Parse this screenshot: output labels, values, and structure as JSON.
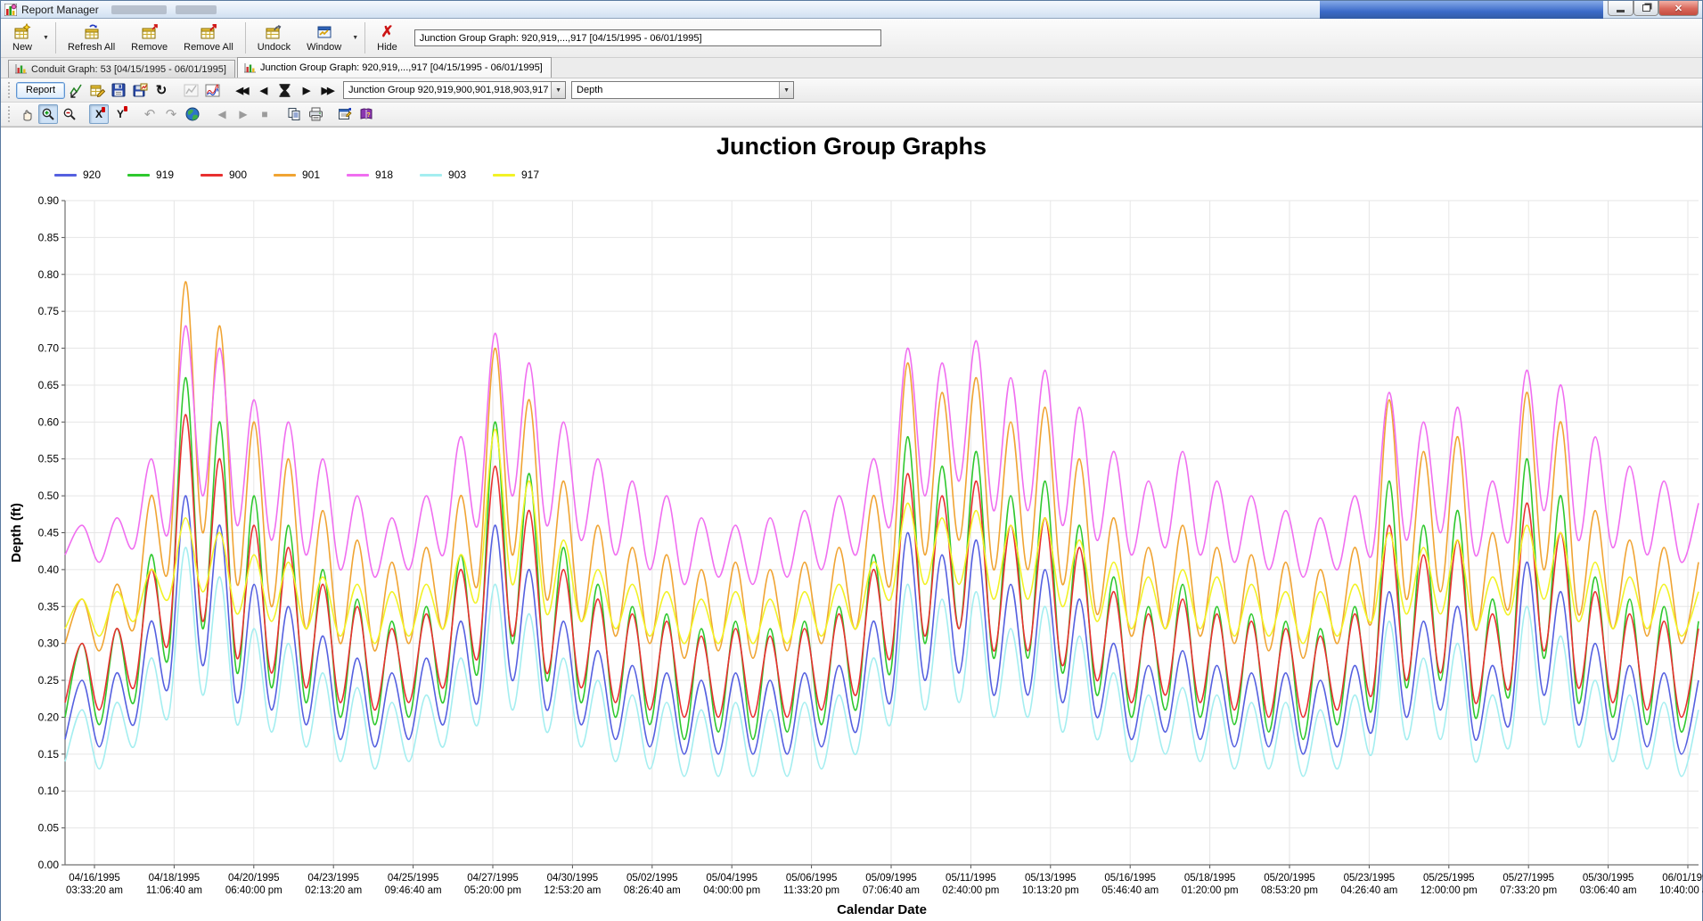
{
  "window": {
    "title": "Report Manager"
  },
  "icons": {
    "caret": "▼",
    "hide_x": "✗",
    "refresh_arrow": "↻",
    "nav_first": "◀◀",
    "nav_prev": "◀",
    "nav_next": "▶",
    "nav_last": "▶▶",
    "undo": "↶",
    "redo": "↷",
    "back": "◀",
    "forward": "▶",
    "stop": "■",
    "x_axis": "X",
    "y_axis": "Y",
    "close": "✕",
    "help_q": "?"
  },
  "toolbar": {
    "buttons": [
      {
        "label": "New"
      },
      {
        "label": "Refresh All"
      },
      {
        "label": "Remove"
      },
      {
        "label": "Remove All"
      },
      {
        "label": "Undock"
      },
      {
        "label": "Window"
      },
      {
        "label": "Hide"
      }
    ],
    "report_field_value": "Junction Group Graph: 920,919,...,917 [04/15/1995 - 06/01/1995]"
  },
  "tabs": [
    {
      "label": "Conduit Graph: 53 [04/15/1995 - 06/01/1995]",
      "active": false
    },
    {
      "label": "Junction Group Graph: 920,919,...,917 [04/15/1995 - 06/01/1995]",
      "active": true
    }
  ],
  "graph_toolbar": {
    "report_button": "Report",
    "group_combo_value": "Junction Group 920,919,900,901,918,903,917",
    "param_combo_value": "Depth"
  },
  "chart_data": {
    "type": "line",
    "title": "Junction Group Graphs",
    "xlabel": "Calendar Date",
    "ylabel": "Depth (ft)",
    "ylim": [
      0,
      0.9
    ],
    "ytick_step": 0.05,
    "grid": true,
    "legend_position": "top-left",
    "x_ticks": [
      {
        "date": "04/16/1995",
        "time": "03:33:20 am"
      },
      {
        "date": "04/18/1995",
        "time": "11:06:40 am"
      },
      {
        "date": "04/20/1995",
        "time": "06:40:00 pm"
      },
      {
        "date": "04/23/1995",
        "time": "02:13:20 am"
      },
      {
        "date": "04/25/1995",
        "time": "09:46:40 am"
      },
      {
        "date": "04/27/1995",
        "time": "05:20:00 pm"
      },
      {
        "date": "04/30/1995",
        "time": "12:53:20 am"
      },
      {
        "date": "05/02/1995",
        "time": "08:26:40 am"
      },
      {
        "date": "05/04/1995",
        "time": "04:00:00 pm"
      },
      {
        "date": "05/06/1995",
        "time": "11:33:20 pm"
      },
      {
        "date": "05/09/1995",
        "time": "07:06:40 am"
      },
      {
        "date": "05/11/1995",
        "time": "02:40:00 pm"
      },
      {
        "date": "05/13/1995",
        "time": "10:13:20 pm"
      },
      {
        "date": "05/16/1995",
        "time": "05:46:40 am"
      },
      {
        "date": "05/18/1995",
        "time": "01:20:00 pm"
      },
      {
        "date": "05/20/1995",
        "time": "08:53:20 pm"
      },
      {
        "date": "05/23/1995",
        "time": "04:26:40 am"
      },
      {
        "date": "05/25/1995",
        "time": "12:00:00 pm"
      },
      {
        "date": "05/27/1995",
        "time": "07:33:20 pm"
      },
      {
        "date": "05/30/1995",
        "time": "03:06:40 am"
      },
      {
        "date": "06/01/1995",
        "time": "10:40:00 am"
      }
    ],
    "x_range_days": 48,
    "samples_per_day": 2,
    "series": [
      {
        "name": "920",
        "color": "#5560e0",
        "values": [
          0.17,
          0.25,
          0.16,
          0.26,
          0.19,
          0.33,
          0.24,
          0.5,
          0.27,
          0.46,
          0.22,
          0.38,
          0.21,
          0.35,
          0.19,
          0.31,
          0.17,
          0.28,
          0.16,
          0.26,
          0.17,
          0.28,
          0.19,
          0.33,
          0.22,
          0.46,
          0.25,
          0.4,
          0.21,
          0.33,
          0.19,
          0.29,
          0.17,
          0.27,
          0.16,
          0.26,
          0.15,
          0.25,
          0.15,
          0.26,
          0.15,
          0.25,
          0.15,
          0.26,
          0.16,
          0.27,
          0.18,
          0.33,
          0.22,
          0.45,
          0.25,
          0.42,
          0.26,
          0.44,
          0.23,
          0.38,
          0.23,
          0.4,
          0.22,
          0.36,
          0.2,
          0.3,
          0.17,
          0.27,
          0.18,
          0.29,
          0.17,
          0.27,
          0.16,
          0.26,
          0.16,
          0.26,
          0.15,
          0.25,
          0.16,
          0.27,
          0.18,
          0.37,
          0.2,
          0.33,
          0.21,
          0.35,
          0.17,
          0.27,
          0.19,
          0.41,
          0.23,
          0.37,
          0.19,
          0.3,
          0.17,
          0.27,
          0.16,
          0.26,
          0.15,
          0.25
        ]
      },
      {
        "name": "919",
        "color": "#2ec82e",
        "values": [
          0.2,
          0.3,
          0.19,
          0.32,
          0.22,
          0.42,
          0.28,
          0.66,
          0.32,
          0.6,
          0.26,
          0.5,
          0.24,
          0.46,
          0.22,
          0.4,
          0.2,
          0.36,
          0.19,
          0.33,
          0.2,
          0.35,
          0.22,
          0.42,
          0.26,
          0.6,
          0.3,
          0.53,
          0.25,
          0.43,
          0.22,
          0.38,
          0.2,
          0.35,
          0.19,
          0.34,
          0.17,
          0.32,
          0.18,
          0.33,
          0.17,
          0.32,
          0.18,
          0.33,
          0.19,
          0.35,
          0.21,
          0.42,
          0.26,
          0.58,
          0.3,
          0.54,
          0.32,
          0.56,
          0.28,
          0.5,
          0.28,
          0.52,
          0.26,
          0.46,
          0.23,
          0.39,
          0.2,
          0.35,
          0.21,
          0.38,
          0.2,
          0.35,
          0.19,
          0.34,
          0.18,
          0.33,
          0.17,
          0.32,
          0.19,
          0.35,
          0.21,
          0.52,
          0.24,
          0.46,
          0.25,
          0.48,
          0.2,
          0.36,
          0.23,
          0.55,
          0.28,
          0.5,
          0.22,
          0.39,
          0.2,
          0.36,
          0.19,
          0.35,
          0.18,
          0.33
        ]
      },
      {
        "name": "900",
        "color": "#e83030",
        "values": [
          0.22,
          0.3,
          0.21,
          0.32,
          0.24,
          0.4,
          0.3,
          0.61,
          0.33,
          0.55,
          0.28,
          0.46,
          0.26,
          0.43,
          0.24,
          0.38,
          0.22,
          0.35,
          0.21,
          0.32,
          0.22,
          0.34,
          0.24,
          0.4,
          0.28,
          0.54,
          0.31,
          0.48,
          0.26,
          0.4,
          0.24,
          0.36,
          0.22,
          0.34,
          0.21,
          0.33,
          0.2,
          0.31,
          0.2,
          0.32,
          0.2,
          0.31,
          0.2,
          0.32,
          0.21,
          0.34,
          0.23,
          0.4,
          0.28,
          0.53,
          0.31,
          0.5,
          0.32,
          0.52,
          0.29,
          0.46,
          0.29,
          0.47,
          0.27,
          0.43,
          0.25,
          0.37,
          0.22,
          0.34,
          0.23,
          0.36,
          0.22,
          0.34,
          0.21,
          0.33,
          0.2,
          0.32,
          0.2,
          0.31,
          0.21,
          0.34,
          0.23,
          0.46,
          0.25,
          0.42,
          0.26,
          0.44,
          0.22,
          0.34,
          0.24,
          0.49,
          0.29,
          0.45,
          0.24,
          0.37,
          0.22,
          0.34,
          0.21,
          0.33,
          0.2,
          0.32
        ]
      },
      {
        "name": "901",
        "color": "#f0a433",
        "values": [
          0.3,
          0.36,
          0.29,
          0.38,
          0.32,
          0.5,
          0.4,
          0.79,
          0.45,
          0.73,
          0.38,
          0.6,
          0.35,
          0.55,
          0.32,
          0.48,
          0.3,
          0.44,
          0.29,
          0.41,
          0.3,
          0.43,
          0.32,
          0.5,
          0.38,
          0.7,
          0.42,
          0.63,
          0.36,
          0.52,
          0.33,
          0.46,
          0.31,
          0.43,
          0.3,
          0.42,
          0.28,
          0.4,
          0.29,
          0.41,
          0.28,
          0.4,
          0.29,
          0.41,
          0.3,
          0.43,
          0.32,
          0.5,
          0.38,
          0.68,
          0.42,
          0.64,
          0.44,
          0.66,
          0.4,
          0.6,
          0.4,
          0.62,
          0.38,
          0.55,
          0.34,
          0.47,
          0.31,
          0.43,
          0.32,
          0.46,
          0.31,
          0.43,
          0.3,
          0.42,
          0.29,
          0.41,
          0.28,
          0.4,
          0.3,
          0.43,
          0.33,
          0.63,
          0.36,
          0.56,
          0.37,
          0.58,
          0.32,
          0.45,
          0.35,
          0.64,
          0.4,
          0.6,
          0.34,
          0.48,
          0.32,
          0.44,
          0.31,
          0.43,
          0.3,
          0.41
        ]
      },
      {
        "name": "918",
        "color": "#f06ef0",
        "values": [
          0.42,
          0.46,
          0.41,
          0.47,
          0.43,
          0.55,
          0.45,
          0.73,
          0.5,
          0.7,
          0.46,
          0.63,
          0.44,
          0.6,
          0.42,
          0.55,
          0.4,
          0.5,
          0.39,
          0.47,
          0.4,
          0.5,
          0.42,
          0.58,
          0.46,
          0.72,
          0.5,
          0.68,
          0.46,
          0.6,
          0.44,
          0.55,
          0.42,
          0.52,
          0.4,
          0.5,
          0.38,
          0.47,
          0.39,
          0.46,
          0.38,
          0.47,
          0.39,
          0.48,
          0.4,
          0.5,
          0.42,
          0.55,
          0.46,
          0.7,
          0.5,
          0.68,
          0.52,
          0.71,
          0.48,
          0.66,
          0.48,
          0.67,
          0.46,
          0.62,
          0.44,
          0.56,
          0.42,
          0.52,
          0.43,
          0.56,
          0.42,
          0.52,
          0.41,
          0.5,
          0.4,
          0.48,
          0.39,
          0.47,
          0.4,
          0.5,
          0.42,
          0.64,
          0.44,
          0.6,
          0.45,
          0.62,
          0.42,
          0.52,
          0.44,
          0.67,
          0.48,
          0.65,
          0.44,
          0.58,
          0.43,
          0.54,
          0.42,
          0.52,
          0.41,
          0.49
        ]
      },
      {
        "name": "903",
        "color": "#a4eef0",
        "values": [
          0.14,
          0.21,
          0.13,
          0.22,
          0.16,
          0.28,
          0.2,
          0.43,
          0.23,
          0.39,
          0.19,
          0.32,
          0.18,
          0.3,
          0.16,
          0.26,
          0.14,
          0.24,
          0.13,
          0.22,
          0.14,
          0.23,
          0.16,
          0.28,
          0.19,
          0.38,
          0.21,
          0.34,
          0.18,
          0.28,
          0.16,
          0.25,
          0.14,
          0.23,
          0.13,
          0.22,
          0.12,
          0.21,
          0.12,
          0.22,
          0.12,
          0.21,
          0.12,
          0.22,
          0.13,
          0.23,
          0.15,
          0.28,
          0.19,
          0.38,
          0.21,
          0.36,
          0.22,
          0.37,
          0.2,
          0.32,
          0.2,
          0.35,
          0.18,
          0.31,
          0.17,
          0.26,
          0.14,
          0.23,
          0.15,
          0.24,
          0.14,
          0.23,
          0.13,
          0.22,
          0.13,
          0.22,
          0.12,
          0.21,
          0.13,
          0.23,
          0.15,
          0.33,
          0.17,
          0.28,
          0.17,
          0.3,
          0.14,
          0.23,
          0.16,
          0.35,
          0.19,
          0.31,
          0.16,
          0.25,
          0.14,
          0.23,
          0.13,
          0.22,
          0.12,
          0.21
        ]
      },
      {
        "name": "917",
        "color": "#f2f226",
        "values": [
          0.32,
          0.36,
          0.31,
          0.37,
          0.33,
          0.4,
          0.36,
          0.47,
          0.37,
          0.45,
          0.34,
          0.42,
          0.33,
          0.41,
          0.32,
          0.39,
          0.31,
          0.38,
          0.3,
          0.37,
          0.31,
          0.38,
          0.32,
          0.42,
          0.36,
          0.59,
          0.38,
          0.52,
          0.34,
          0.44,
          0.33,
          0.4,
          0.32,
          0.38,
          0.31,
          0.37,
          0.3,
          0.36,
          0.3,
          0.37,
          0.3,
          0.36,
          0.3,
          0.37,
          0.31,
          0.38,
          0.32,
          0.41,
          0.36,
          0.49,
          0.38,
          0.47,
          0.38,
          0.48,
          0.36,
          0.46,
          0.36,
          0.47,
          0.35,
          0.44,
          0.33,
          0.41,
          0.32,
          0.39,
          0.32,
          0.4,
          0.32,
          0.39,
          0.31,
          0.38,
          0.31,
          0.37,
          0.3,
          0.37,
          0.31,
          0.38,
          0.33,
          0.45,
          0.34,
          0.43,
          0.34,
          0.44,
          0.32,
          0.39,
          0.34,
          0.46,
          0.36,
          0.45,
          0.33,
          0.41,
          0.32,
          0.39,
          0.32,
          0.38,
          0.31,
          0.37
        ]
      }
    ]
  }
}
